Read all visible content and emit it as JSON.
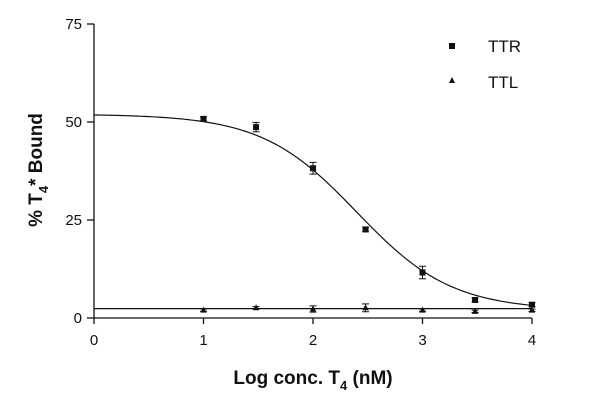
{
  "chart_data": {
    "type": "scatter",
    "xlabel_main": "Log conc. T",
    "xlabel_sub": "4",
    "xlabel_unit": " (nM)",
    "ylabel_main": "% T",
    "ylabel_sub": "4",
    "ylabel_rest": "* Bound",
    "xlim": [
      0,
      4
    ],
    "ylim": [
      0,
      75
    ],
    "xticks": [
      0,
      1,
      2,
      3,
      4
    ],
    "yticks": [
      0,
      25,
      50,
      75
    ],
    "legend_position": "top-right",
    "series": [
      {
        "name": "TTR",
        "marker": "square",
        "points": [
          {
            "x": 1.0,
            "y": 50.8,
            "err": 0.5
          },
          {
            "x": 1.48,
            "y": 48.7,
            "err": 1.2
          },
          {
            "x": 2.0,
            "y": 38.2,
            "err": 1.5
          },
          {
            "x": 2.48,
            "y": 22.6,
            "err": 0.6
          },
          {
            "x": 3.0,
            "y": 11.6,
            "err": 1.6
          },
          {
            "x": 3.48,
            "y": 4.6,
            "err": 0.5
          },
          {
            "x": 4.0,
            "y": 3.4,
            "err": 0.5
          }
        ],
        "fit": {
          "top": 52,
          "bottom": 2,
          "logIC50": 2.4,
          "hill": 1
        }
      },
      {
        "name": "TTL",
        "marker": "triangle",
        "points": [
          {
            "x": 1.0,
            "y": 2.0,
            "err": 0.3
          },
          {
            "x": 1.48,
            "y": 2.6,
            "err": 0.3
          },
          {
            "x": 2.0,
            "y": 2.3,
            "err": 0.8
          },
          {
            "x": 2.48,
            "y": 2.6,
            "err": 1.0
          },
          {
            "x": 3.0,
            "y": 2.0,
            "err": 0.3
          },
          {
            "x": 3.48,
            "y": 1.7,
            "err": 0.3
          },
          {
            "x": 4.0,
            "y": 2.0,
            "err": 0.3
          }
        ],
        "fit": {
          "constant": 2.4
        }
      }
    ]
  }
}
